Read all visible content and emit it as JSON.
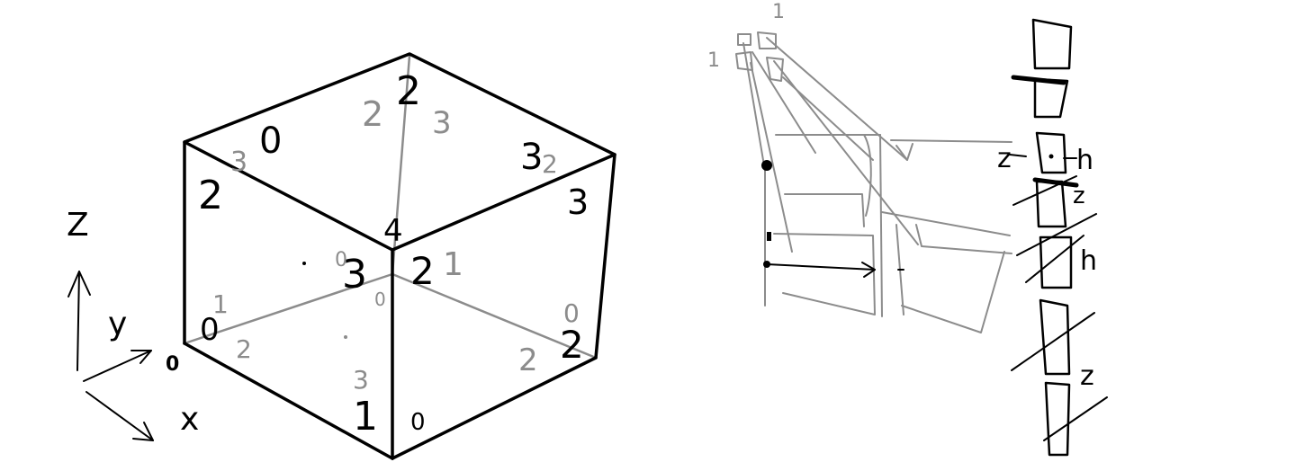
{
  "colors": {
    "ink": "#000000",
    "gray": "#8c8c8c",
    "background": "#ffffff"
  },
  "axes": {
    "z_label": "Z",
    "y_label": "y",
    "x_label": "x",
    "origin_label": "0"
  },
  "cube_labels": {
    "top_face_0": "0",
    "top_left_2": "2",
    "top_left_3": "3",
    "top_back_2_gray": "2",
    "top_back_3_gray": "3",
    "top_back_2": "2",
    "top_right_3": "3",
    "top_right_2_gray": "2",
    "right_edge_3": "3",
    "center_4": "4",
    "center_3": "3",
    "center_0_gray": "0",
    "center_0_small": "0",
    "right_2": "2",
    "right_1_gray": "1",
    "left_1_gray": "1",
    "left_0": "0",
    "bottom_2_gray": "2",
    "bottom_3_gray": "3",
    "bottom_1": "1",
    "bottom_0": "0",
    "right_0_gray": "0",
    "right_bottom_2": "2",
    "right_bottom_2_gray": "2"
  },
  "right_sketch": {
    "top_1": "1",
    "left_1": "1",
    "z_label": "z",
    "h_label_1": "h",
    "h_label_2": "h",
    "z_label_2": "z",
    "z_label_3": "z"
  }
}
